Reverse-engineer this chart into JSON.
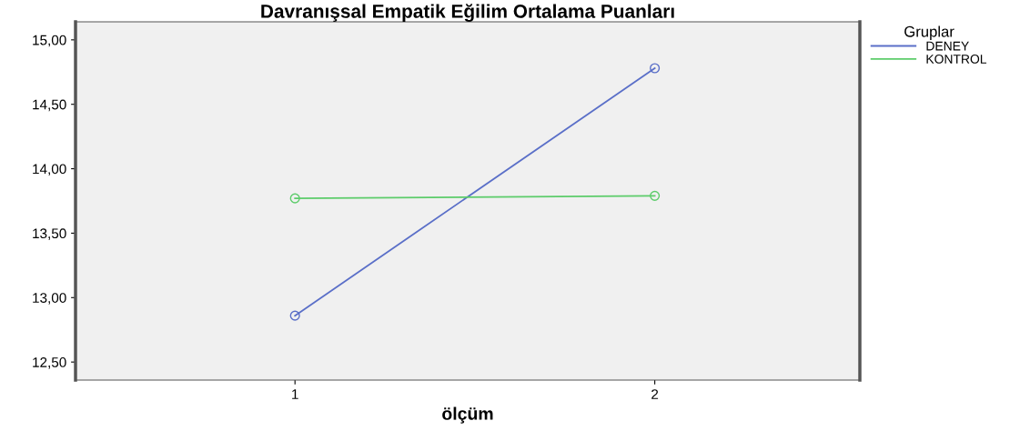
{
  "chart_data": {
    "type": "line",
    "title": "Davranışsal Empatik Eğilim Ortalama Puanları",
    "xlabel": "ölçüm",
    "legend_title": "Gruplar",
    "categories": [
      "1",
      "2"
    ],
    "series": [
      {
        "name": "DENEY",
        "color": "#5a6fc8",
        "values": [
          12.86,
          14.78
        ]
      },
      {
        "name": "KONTROL",
        "color": "#5ccc6a",
        "values": [
          13.77,
          13.79
        ]
      }
    ],
    "ylim": [
      12.36,
      15.14
    ],
    "yticks": [
      {
        "value": 12.5,
        "label": "12,50"
      },
      {
        "value": 13.0,
        "label": "13,00"
      },
      {
        "value": 13.5,
        "label": "13,50"
      },
      {
        "value": 14.0,
        "label": "14,00"
      },
      {
        "value": 14.5,
        "label": "14,50"
      },
      {
        "value": 15.0,
        "label": "15,00"
      }
    ],
    "marker": "circle",
    "line_style": "solid",
    "legend": "top right",
    "grid": false
  }
}
